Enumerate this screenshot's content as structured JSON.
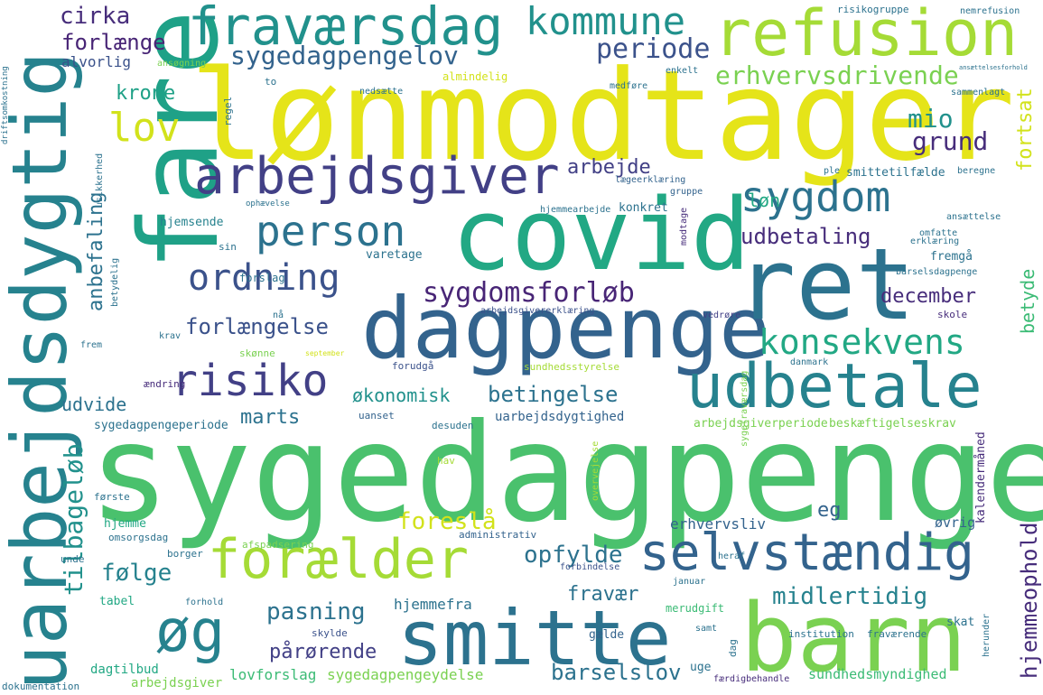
{
  "colors": {
    "background": "#ffffff",
    "yellow": "#e5e419",
    "yellow2": "#d2e21b",
    "lime": "#a5db36",
    "green": "#7ad151",
    "green2": "#4ac16d",
    "green3": "#3bbb75",
    "teal": "#22a884",
    "teal2": "#1fa187",
    "teal3": "#21918c",
    "cyan": "#26828e",
    "blue": "#2c728e",
    "blue2": "#33638d",
    "indigo": "#3b528b",
    "indigo2": "#424086",
    "purple": "#472d7b",
    "purple2": "#482576",
    "dark": "#440154"
  },
  "words": {
    "sygedagpenge": "sygedagpenge",
    "lonmodtager": "lønmodtager",
    "covid": "covid",
    "fare": "fare",
    "uarbejdsdygtig": "uarbejdsdygtig",
    "dagpenge": "dagpenge",
    "ret": "ret",
    "smitte": "smitte",
    "barn": "barn",
    "refusion": "refusion",
    "fravaersdag": "fraværsdag",
    "foraelder": "forælder",
    "udbetale": "udbetale",
    "arbejdsgiver": "arbejdsgiver",
    "selvstaendig": "selvstændig",
    "og": "øg",
    "risiko": "risiko",
    "person": "person",
    "ordning": "ordning",
    "sygdom": "sygdom",
    "kommune": "kommune",
    "konsekvens": "konsekvens",
    "lov": "lov",
    "sygedagpengelov": "sygedagpengelov",
    "periode": "periode",
    "erhvervsdrivende": "erhvervsdrivende",
    "cirka": "cirka",
    "forlaenge": "forlænge",
    "alvorlig": "alvorlig",
    "mio": "mio",
    "grund": "grund",
    "fortsat": "fortsat",
    "krone": "krone",
    "arbejde": "arbejde",
    "udbetaling": "udbetaling",
    "sygdomsforlob": "sygdomsforløb",
    "december": "december",
    "betyde": "betyde",
    "forlaengelse": "forlængelse",
    "anbefaling": "anbefaling",
    "lon": "løn",
    "tilbagelob": "tilbageløb",
    "betingelse": "betingelse",
    "okonomisk": "økonomisk",
    "udvide": "udvide",
    "marts": "marts",
    "foresla": "foreslå",
    "eg": "eg",
    "opfylde": "opfylde",
    "folge": "følge",
    "pasning": "pasning",
    "midlertidig": "midlertidig",
    "fravaer": "fravær",
    "hjemmeophold": "hjemmeophold",
    "parorende": "pårørende",
    "barselslov": "barselslov",
    "hjemmefra": "hjemmefra",
    "lovforslag": "lovforslag",
    "sygedagpengeydelse": "sygedagpengeydelse",
    "sundhedsmyndighed": "sundhedsmyndighed",
    "dagtilbud": "dagtilbud",
    "arbejdsgiver2": "arbejdsgiver",
    "erhvervsliv": "erhvervsliv",
    "ovrig": "øvrig",
    "uarbejdsdygtighed": "uarbejdsdygtighed",
    "sygedagpengeperiode": "sygedagpengeperiode",
    "arbejdsgiverperiode": "arbejdsgiverperiode",
    "beskaeftigelseskrav": "beskæftigelseskrav",
    "kalendermaned": "kalendermåned",
    "hjemsende": "hjemsende",
    "konkret": "konkret",
    "varetage": "varetage",
    "smittetilfaelde": "smittetilfælde",
    "fremga": "fremgå",
    "erklaering": "erklæring",
    "barselsdagpenge": "barselsdagpenge",
    "forslag": "forslag",
    "skole": "skole",
    "vedrore": "vedrøre",
    "arbejdsgivererklaering": "arbejdsgivererklæring",
    "sundhedsstyrelse": "sundhedsstyrelse",
    "forudga": "forudgå",
    "danmark": "danmark",
    "aendring": "ændring",
    "skonne": "skønne",
    "desuden": "desuden",
    "uanset": "uanset",
    "hjemme": "hjemme",
    "omsorgsdag": "omsorgsdag",
    "forste": "første",
    "tabel": "tabel",
    "forhold": "forhold",
    "skylde": "skylde",
    "galde": "gælde",
    "merudgift": "merudgift",
    "institution": "institution",
    "fravaerende": "fraværende",
    "skat": "skat",
    "uge": "uge",
    "faerdigbehandle": "færdigbehandle",
    "dag": "dag",
    "herunder": "herunder",
    "samt": "samt",
    "afspadsering": "afspadsering",
    "administrativ": "administrativ",
    "borger": "borger",
    "januar": "januar",
    "forbindelse": "forbindelse",
    "heraf": "heraf",
    "unde": "unde",
    "hav": "hav",
    "overvejelse": "overvejelse",
    "dokumentation": "dokumentation",
    "gruppe": "gruppe",
    "laegeerklaering": "lægeerklæring",
    "omfatte": "omfatte",
    "beregne": "beregne",
    "ansaettelse": "ansættelse",
    "ple": "ple",
    "modtage": "modtage",
    "risikogruppe": "risikogruppe",
    "nemrefusion": "nemrefusion",
    "almindelig": "almindelig",
    "nedsaette": "nedsætte",
    "enkelt": "enkelt",
    "medfore": "medføre",
    "sammenlagt": "sammenlagt",
    "ansogning": "ansøgning",
    "regel": "regel",
    "to": "to",
    "hjemmearbejde": "hjemmearbejde",
    "ophaevelse": "ophævelse",
    "sin": "sin",
    "betydelig": "betydelig",
    "usikkerhed": "usikkerhed",
    "driftsomkostning": "driftsomkostning",
    "frem": "frem",
    "krav": "krav",
    "na": "nå",
    "september": "september",
    "sygefravaersdag": "sygefraværsdag",
    "ansaettelsesforhold": "ansættelsesforhold"
  }
}
